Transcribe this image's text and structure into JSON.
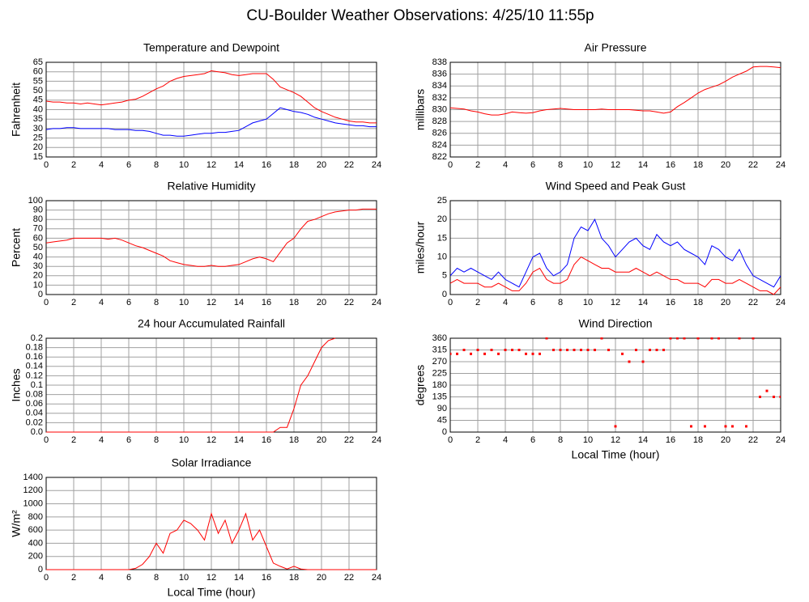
{
  "title": "CU-Boulder Weather Observations: 4/25/10 11:55p",
  "chart_data": [
    {
      "type": "line",
      "title": "Temperature and Dewpoint",
      "ylabel": "Fahrenheit",
      "x": [
        0,
        0.5,
        1,
        1.5,
        2,
        2.5,
        3,
        3.5,
        4,
        4.5,
        5,
        5.5,
        6,
        6.5,
        7,
        7.5,
        8,
        8.5,
        9,
        9.5,
        10,
        10.5,
        11,
        11.5,
        12,
        12.5,
        13,
        13.5,
        14,
        14.5,
        15,
        15.5,
        16,
        16.5,
        17,
        17.5,
        18,
        18.5,
        19,
        19.5,
        20,
        20.5,
        21,
        21.5,
        22,
        22.5,
        23,
        23.5,
        24
      ],
      "series": [
        {
          "color": "#ff0000",
          "values": [
            44.5,
            44,
            44,
            43.5,
            43.5,
            43,
            43.5,
            43,
            42.5,
            43,
            43.5,
            44,
            45,
            45.5,
            47,
            49,
            51,
            52.5,
            55,
            56.5,
            57.5,
            58,
            58.5,
            59,
            60.5,
            60,
            59.5,
            58.5,
            58,
            58.5,
            59,
            59,
            59,
            56,
            52,
            50.5,
            49,
            47,
            44,
            41,
            39,
            37.5,
            36,
            35,
            34,
            33.5,
            33.5,
            33,
            33
          ]
        },
        {
          "color": "#0000ff",
          "values": [
            29.5,
            30,
            30,
            30.5,
            30.5,
            30,
            30,
            30,
            30,
            30,
            29.5,
            29.5,
            29.5,
            29,
            29,
            28.5,
            27.5,
            26.5,
            26.5,
            26,
            26,
            26.5,
            27,
            27.5,
            27.5,
            28,
            28,
            28.5,
            29,
            31,
            33,
            34,
            35,
            38,
            41,
            40,
            39,
            38.5,
            37.5,
            36,
            35,
            34,
            33,
            32.5,
            32,
            31.5,
            31.5,
            31,
            31
          ]
        }
      ],
      "xlim": [
        0,
        24
      ],
      "xticks": [
        0,
        2,
        4,
        6,
        8,
        10,
        12,
        14,
        16,
        18,
        20,
        22,
        24
      ],
      "ylim": [
        15,
        65
      ],
      "yticks": [
        15,
        20,
        25,
        30,
        35,
        40,
        45,
        50,
        55,
        60,
        65
      ],
      "grid": true
    },
    {
      "type": "line",
      "title": "Air Pressure",
      "ylabel": "millibars",
      "x": [
        0,
        0.5,
        1,
        1.5,
        2,
        2.5,
        3,
        3.5,
        4,
        4.5,
        5,
        5.5,
        6,
        6.5,
        7,
        7.5,
        8,
        8.5,
        9,
        9.5,
        10,
        10.5,
        11,
        11.5,
        12,
        12.5,
        13,
        13.5,
        14,
        14.5,
        15,
        15.5,
        16,
        16.5,
        17,
        17.5,
        18,
        18.5,
        19,
        19.5,
        20,
        20.5,
        21,
        21.5,
        22,
        22.5,
        23,
        23.5,
        24
      ],
      "series": [
        {
          "color": "#ff0000",
          "values": [
            830.3,
            830.2,
            830.1,
            829.8,
            829.6,
            829.3,
            829.1,
            829.1,
            829.3,
            829.6,
            829.5,
            829.4,
            829.5,
            829.8,
            830,
            830.1,
            830.2,
            830.1,
            830,
            830,
            830,
            830,
            830.1,
            830,
            830,
            830,
            830,
            829.9,
            829.8,
            829.8,
            829.6,
            829.4,
            829.6,
            830.5,
            831.2,
            832,
            832.8,
            833.4,
            833.8,
            834.2,
            834.8,
            835.5,
            836,
            836.5,
            837.2,
            837.3,
            837.3,
            837.2,
            837.1
          ]
        }
      ],
      "xlim": [
        0,
        24
      ],
      "xticks": [
        0,
        2,
        4,
        6,
        8,
        10,
        12,
        14,
        16,
        18,
        20,
        22,
        24
      ],
      "ylim": [
        822,
        838
      ],
      "yticks": [
        822,
        824,
        826,
        828,
        830,
        832,
        834,
        836,
        838
      ],
      "grid": true
    },
    {
      "type": "line",
      "title": "Relative Humidity",
      "ylabel": "Percent",
      "x": [
        0,
        0.5,
        1,
        1.5,
        2,
        2.5,
        3,
        3.5,
        4,
        4.5,
        5,
        5.5,
        6,
        6.5,
        7,
        7.5,
        8,
        8.5,
        9,
        9.5,
        10,
        10.5,
        11,
        11.5,
        12,
        12.5,
        13,
        13.5,
        14,
        14.5,
        15,
        15.5,
        16,
        16.5,
        17,
        17.5,
        18,
        18.5,
        19,
        19.5,
        20,
        20.5,
        21,
        21.5,
        22,
        22.5,
        23,
        23.5,
        24
      ],
      "series": [
        {
          "color": "#ff0000",
          "values": [
            55,
            56,
            57,
            58,
            60,
            60,
            60,
            60,
            60,
            59,
            60,
            58,
            55,
            52,
            50,
            47,
            44,
            41,
            36,
            34,
            32,
            31,
            30,
            30,
            31,
            30,
            30,
            31,
            32,
            35,
            38,
            40,
            38,
            35,
            45,
            55,
            60,
            70,
            78,
            80,
            83,
            86,
            88,
            89,
            90,
            90,
            91,
            91,
            91
          ]
        }
      ],
      "xlim": [
        0,
        24
      ],
      "xticks": [
        0,
        2,
        4,
        6,
        8,
        10,
        12,
        14,
        16,
        18,
        20,
        22,
        24
      ],
      "ylim": [
        0,
        100
      ],
      "yticks": [
        0,
        10,
        20,
        30,
        40,
        50,
        60,
        70,
        80,
        90,
        100
      ],
      "grid": true
    },
    {
      "type": "line",
      "title": "Wind Speed and Peak Gust",
      "ylabel": "miles/hour",
      "x": [
        0,
        0.5,
        1,
        1.5,
        2,
        2.5,
        3,
        3.5,
        4,
        4.5,
        5,
        5.5,
        6,
        6.5,
        7,
        7.5,
        8,
        8.5,
        9,
        9.5,
        10,
        10.5,
        11,
        11.5,
        12,
        12.5,
        13,
        13.5,
        14,
        14.5,
        15,
        15.5,
        16,
        16.5,
        17,
        17.5,
        18,
        18.5,
        19,
        19.5,
        20,
        20.5,
        21,
        21.5,
        22,
        22.5,
        23,
        23.5,
        24
      ],
      "series": [
        {
          "color": "#0000ff",
          "values": [
            5,
            7,
            6,
            7,
            6,
            5,
            4,
            6,
            4,
            3,
            2,
            6,
            10,
            11,
            7,
            5,
            6,
            8,
            15,
            18,
            17,
            20,
            15,
            13,
            10,
            12,
            14,
            15,
            13,
            12,
            16,
            14,
            13,
            14,
            12,
            11,
            10,
            8,
            13,
            12,
            10,
            9,
            12,
            8,
            5,
            4,
            3,
            2,
            5
          ]
        },
        {
          "color": "#ff0000",
          "values": [
            3,
            4,
            3,
            3,
            3,
            2,
            2,
            3,
            2,
            1,
            1,
            3,
            6,
            7,
            4,
            3,
            3,
            4,
            8,
            10,
            9,
            8,
            7,
            7,
            6,
            6,
            6,
            7,
            6,
            5,
            6,
            5,
            4,
            4,
            3,
            3,
            3,
            2,
            4,
            4,
            3,
            3,
            4,
            3,
            2,
            1,
            1,
            0,
            2
          ]
        }
      ],
      "xlim": [
        0,
        24
      ],
      "xticks": [
        0,
        2,
        4,
        6,
        8,
        10,
        12,
        14,
        16,
        18,
        20,
        22,
        24
      ],
      "ylim": [
        0,
        25
      ],
      "yticks": [
        0,
        5,
        10,
        15,
        20,
        25
      ],
      "grid": true
    },
    {
      "type": "line",
      "title": "24 hour Accumulated Rainfall",
      "ylabel": "Inches",
      "x": [
        0,
        0.5,
        1,
        1.5,
        2,
        2.5,
        3,
        3.5,
        4,
        4.5,
        5,
        5.5,
        6,
        6.5,
        7,
        7.5,
        8,
        8.5,
        9,
        9.5,
        10,
        10.5,
        11,
        11.5,
        12,
        12.5,
        13,
        13.5,
        14,
        14.5,
        15,
        15.5,
        16,
        16.5,
        17,
        17.5,
        18,
        18.5,
        19,
        19.5,
        20,
        20.5,
        21
      ],
      "series": [
        {
          "color": "#ff0000",
          "values": [
            0,
            0,
            0,
            0,
            0,
            0,
            0,
            0,
            0,
            0,
            0,
            0,
            0,
            0,
            0,
            0,
            0,
            0,
            0,
            0,
            0,
            0,
            0,
            0,
            0,
            0,
            0,
            0,
            0,
            0,
            0,
            0,
            0,
            0,
            0.01,
            0.01,
            0.05,
            0.1,
            0.12,
            0.15,
            0.18,
            0.195,
            0.2
          ]
        }
      ],
      "xlim": [
        0,
        24
      ],
      "xticks": [
        0,
        2,
        4,
        6,
        8,
        10,
        12,
        14,
        16,
        18,
        20,
        22,
        24
      ],
      "ylim": [
        0,
        0.2
      ],
      "yticks": [
        {
          "value": 0,
          "label": "0.0"
        },
        0.02,
        0.04,
        0.06,
        0.08,
        0.1,
        0.12,
        0.14,
        0.16,
        0.18,
        0.2
      ],
      "grid": true
    },
    {
      "type": "scatter",
      "title": "Wind Direction",
      "ylabel": "degrees",
      "xlabel": "Local Time (hour)",
      "x": [
        0,
        0.5,
        1,
        1.5,
        2,
        2.5,
        3,
        3.5,
        4,
        4.5,
        5,
        5.5,
        6,
        6.5,
        7,
        7.5,
        8,
        8.5,
        9,
        9.5,
        10,
        10.5,
        11,
        11.5,
        12,
        12.5,
        13,
        13.5,
        14,
        14.5,
        15,
        15.5,
        16,
        16.5,
        17,
        17.5,
        18,
        18.5,
        19,
        19.5,
        20,
        20.5,
        21,
        21.5,
        22,
        22.5,
        23,
        23.5,
        24
      ],
      "series": [
        {
          "color": "#ff0000",
          "values": [
            300,
            300,
            315,
            300,
            315,
            300,
            315,
            300,
            315,
            315,
            315,
            300,
            300,
            300,
            360,
            315,
            315,
            315,
            315,
            315,
            315,
            315,
            360,
            315,
            22,
            300,
            270,
            315,
            270,
            315,
            315,
            315,
            360,
            360,
            360,
            22,
            360,
            22,
            360,
            360,
            22,
            22,
            360,
            22,
            360,
            135,
            158,
            135,
            135
          ]
        }
      ],
      "xlim": [
        0,
        24
      ],
      "xticks": [
        0,
        2,
        4,
        6,
        8,
        10,
        12,
        14,
        16,
        18,
        20,
        22,
        24
      ],
      "ylim": [
        0,
        360
      ],
      "yticks": [
        0,
        45,
        90,
        135,
        180,
        225,
        270,
        315,
        360
      ],
      "grid": true
    },
    {
      "type": "line",
      "title": "Solar Irradiance",
      "ylabel": "W/m²",
      "xlabel": "Local Time (hour)",
      "x": [
        0,
        0.5,
        1,
        1.5,
        2,
        2.5,
        3,
        3.5,
        4,
        4.5,
        5,
        5.5,
        6,
        6.5,
        7,
        7.5,
        8,
        8.5,
        9,
        9.5,
        10,
        10.5,
        11,
        11.5,
        12,
        12.5,
        13,
        13.5,
        14,
        14.5,
        15,
        15.5,
        16,
        16.5,
        17,
        17.5,
        18,
        18.5,
        19,
        19.5,
        20,
        20.5,
        21,
        21.5,
        22,
        22.5,
        23,
        23.5,
        24
      ],
      "series": [
        {
          "color": "#ff0000",
          "values": [
            0,
            0,
            0,
            0,
            0,
            0,
            0,
            0,
            0,
            0,
            0,
            0,
            0,
            20,
            80,
            200,
            400,
            250,
            550,
            600,
            750,
            700,
            600,
            450,
            850,
            550,
            750,
            400,
            600,
            850,
            450,
            600,
            350,
            100,
            50,
            10,
            50,
            10,
            0,
            0,
            0,
            0,
            0,
            0,
            0,
            0,
            0,
            0,
            0
          ]
        }
      ],
      "xlim": [
        0,
        24
      ],
      "xticks": [
        0,
        2,
        4,
        6,
        8,
        10,
        12,
        14,
        16,
        18,
        20,
        22,
        24
      ],
      "ylim": [
        0,
        1400
      ],
      "yticks": [
        0,
        200,
        400,
        600,
        800,
        1000,
        1200,
        1400
      ],
      "grid": true
    }
  ]
}
